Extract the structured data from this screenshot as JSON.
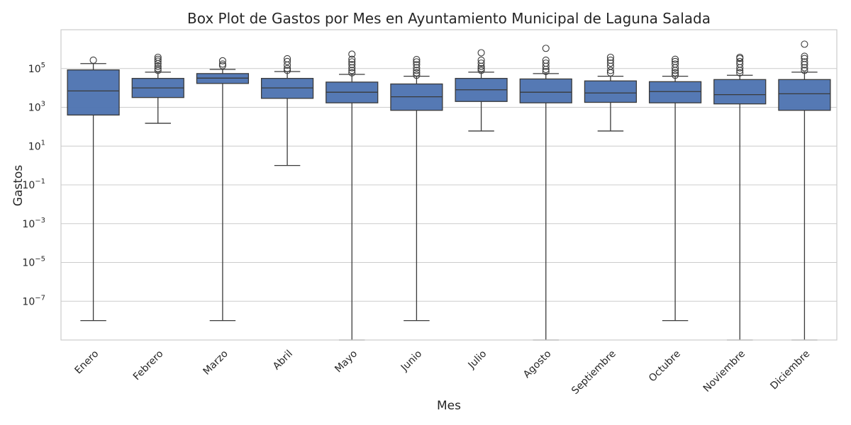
{
  "chart_data": {
    "type": "box",
    "title": "Box Plot de Gastos por Mes en Ayuntamiento Municipal de Laguna Salada",
    "xlabel": "Mes",
    "ylabel": "Gastos",
    "yscale": "log",
    "ylim": [
      1e-09,
      10000000.0
    ],
    "yticks": [
      {
        "base": "10",
        "exp": "5",
        "value": 100000
      },
      {
        "base": "10",
        "exp": "3",
        "value": 1000
      },
      {
        "base": "10",
        "exp": "1",
        "value": 10
      },
      {
        "base": "10",
        "exp": "−1",
        "value": 0.1
      },
      {
        "base": "10",
        "exp": "−3",
        "value": 0.001
      },
      {
        "base": "10",
        "exp": "−5",
        "value": 1e-05
      },
      {
        "base": "10",
        "exp": "−7",
        "value": 1e-07
      }
    ],
    "grid": true,
    "box_color": "#4c72b0",
    "categories": [
      "Enero",
      "Febrero",
      "Marzo",
      "Abril",
      "Mayo",
      "Junio",
      "Julio",
      "Agosto",
      "Septiembre",
      "Octubre",
      "Noviembre",
      "Diciembre"
    ],
    "boxes": [
      {
        "min": 1e-08,
        "q1": 400,
        "median": 7000,
        "q3": 85000,
        "max": 180000,
        "fliers": [
          270000
        ]
      },
      {
        "min": 150,
        "q1": 3200,
        "median": 10000,
        "q3": 31000,
        "max": 65000,
        "fliers": [
          80000,
          100000,
          130000,
          180000,
          240000,
          300000,
          380000
        ]
      },
      {
        "min": 1e-08,
        "q1": 17000,
        "median": 32000,
        "q3": 55000,
        "max": 90000,
        "fliers": [
          140000,
          170000,
          250000
        ]
      },
      {
        "min": 1,
        "q1": 2900,
        "median": 10000,
        "q3": 31000,
        "max": 70000,
        "fliers": [
          80000,
          100000,
          150000,
          230000,
          320000
        ]
      },
      {
        "min": 1e-09,
        "q1": 1700,
        "median": 6000,
        "q3": 20000,
        "max": 50000,
        "fliers": [
          60000,
          80000,
          110000,
          160000,
          220000,
          300000,
          550000
        ]
      },
      {
        "min": 1e-08,
        "q1": 700,
        "median": 3500,
        "q3": 16000,
        "max": 40000,
        "fliers": [
          45000,
          60000,
          80000,
          110000,
          160000,
          220000,
          290000
        ]
      },
      {
        "min": 60,
        "q1": 2000,
        "median": 8000,
        "q3": 31000,
        "max": 65000,
        "fliers": [
          80000,
          100000,
          130000,
          190000,
          270000,
          650000
        ]
      },
      {
        "min": 1e-09,
        "q1": 1700,
        "median": 6000,
        "q3": 29000,
        "max": 55000,
        "fliers": [
          70000,
          90000,
          130000,
          190000,
          270000,
          1100000
        ]
      },
      {
        "min": 60,
        "q1": 1800,
        "median": 5500,
        "q3": 23000,
        "max": 40000,
        "fliers": [
          60000,
          80000,
          130000,
          190000,
          270000,
          380000
        ]
      },
      {
        "min": 1e-08,
        "q1": 1700,
        "median": 6500,
        "q3": 21000,
        "max": 40000,
        "fliers": [
          45000,
          60000,
          80000,
          110000,
          170000,
          230000,
          300000
        ]
      },
      {
        "min": 1e-09,
        "q1": 1500,
        "median": 4500,
        "q3": 27000,
        "max": 45000,
        "fliers": [
          60000,
          80000,
          110000,
          170000,
          230000,
          330000,
          380000
        ]
      },
      {
        "min": 1e-09,
        "q1": 700,
        "median": 5000,
        "q3": 27000,
        "max": 65000,
        "fliers": [
          80000,
          110000,
          160000,
          220000,
          330000,
          430000,
          1800000
        ]
      }
    ]
  }
}
